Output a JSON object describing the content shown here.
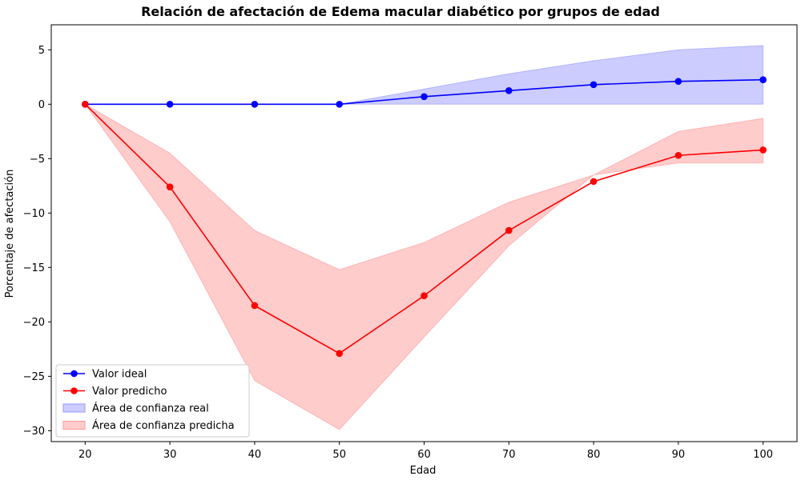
{
  "chart_data": {
    "type": "line",
    "title": "Relación de afectación de Edema macular diabético por grupos de edad",
    "xlabel": "Edad",
    "ylabel": "Porcentaje de afectación",
    "xlim": [
      16,
      104
    ],
    "ylim": [
      -31,
      7.3
    ],
    "xticks": [
      20,
      30,
      40,
      50,
      60,
      70,
      80,
      90,
      100
    ],
    "yticks": [
      5,
      0,
      -5,
      -10,
      -15,
      -20,
      -25,
      -30
    ],
    "ytick_labels": [
      "5",
      "0",
      "−5",
      "−10",
      "−15",
      "−20",
      "−25",
      "−30"
    ],
    "x": [
      20,
      30,
      40,
      50,
      60,
      70,
      80,
      90,
      100
    ],
    "grid": false,
    "legend_position": "lower-left",
    "series": [
      {
        "name": "Valor ideal",
        "color": "#0000ff",
        "values": [
          0,
          0,
          0,
          0,
          0.7,
          1.25,
          1.8,
          2.1,
          2.25
        ],
        "marker": "circle"
      },
      {
        "name": "Valor predicho",
        "color": "#ff0000",
        "values": [
          0,
          -7.6,
          -18.5,
          -22.9,
          -17.6,
          -11.6,
          -7.1,
          -4.7,
          -4.2
        ],
        "marker": "circle"
      }
    ],
    "bands": [
      {
        "name": "Área de confianza real",
        "color": "#0000ff",
        "fill": "#ccccff",
        "upper": [
          0,
          0,
          0,
          0,
          1.4,
          2.8,
          4.0,
          5.0,
          5.4
        ],
        "lower": [
          0,
          0,
          0,
          0,
          0,
          0,
          0,
          0,
          0
        ]
      },
      {
        "name": "Área de confianza predicha",
        "color": "#ff0000",
        "fill": "#ffcccc",
        "upper": [
          0,
          -4.5,
          -11.6,
          -15.2,
          -12.7,
          -9.0,
          -6.5,
          -2.5,
          -1.3
        ],
        "lower": [
          0,
          -10.8,
          -25.4,
          -29.9,
          -21.4,
          -13.0,
          -6.5,
          -5.4,
          -5.4
        ]
      }
    ],
    "legend": [
      {
        "label": "Valor ideal",
        "kind": "line",
        "color": "#0000ff"
      },
      {
        "label": "Valor predicho",
        "kind": "line",
        "color": "#ff0000"
      },
      {
        "label": "Área de confianza real",
        "kind": "patch",
        "color": "#ccccff",
        "edge": "#9999ff"
      },
      {
        "label": "Área de confianza predicha",
        "kind": "patch",
        "color": "#ffcccc",
        "edge": "#ff9999"
      }
    ]
  }
}
